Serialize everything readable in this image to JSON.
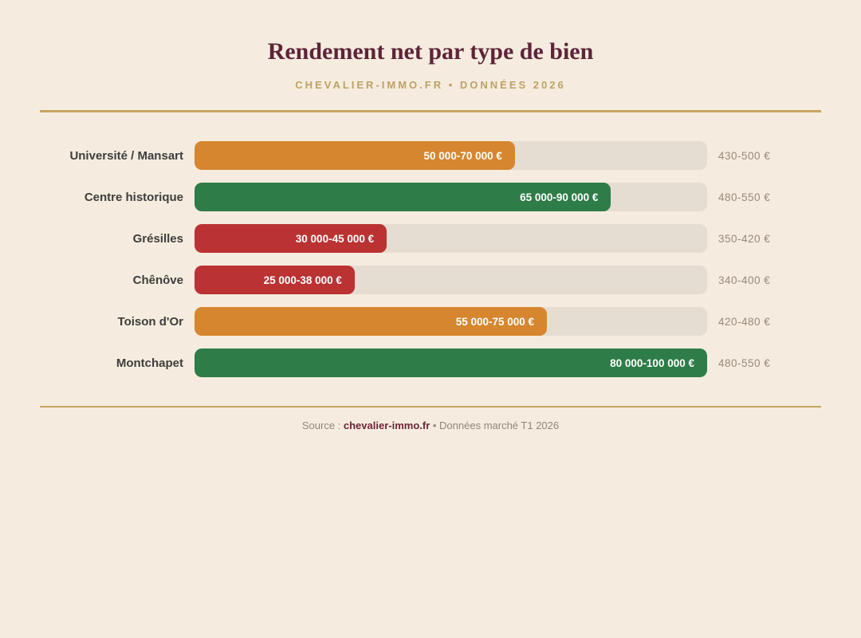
{
  "header": {
    "title": "Rendement net par type de bien",
    "subtitle": "CHEVALIER-IMMO.FR • DONNÉES 2026"
  },
  "chart_data": {
    "type": "bar",
    "orientation": "horizontal",
    "title": "Rendement net par type de bien",
    "value_unit": "EUR",
    "scale_note": "bar length proportional to lower bound of price range, 80 000 € = full track",
    "rows": [
      {
        "label": "Université / Mansart",
        "value_label": "50 000-70 000 €",
        "range_min": 50000,
        "range_max": 70000,
        "rent_label": "430-500 €",
        "color": "#d6862f",
        "fill_pct": 62.5
      },
      {
        "label": "Centre historique",
        "value_label": "65 000-90 000 €",
        "range_min": 65000,
        "range_max": 90000,
        "rent_label": "480-550 €",
        "color": "#2e7c47",
        "fill_pct": 81.25
      },
      {
        "label": "Grésilles",
        "value_label": "30 000-45 000 €",
        "range_min": 30000,
        "range_max": 45000,
        "rent_label": "350-420 €",
        "color": "#bb3232",
        "fill_pct": 37.5
      },
      {
        "label": "Chênôve",
        "value_label": "25 000-38 000 €",
        "range_min": 25000,
        "range_max": 38000,
        "rent_label": "340-400 €",
        "color": "#bb3232",
        "fill_pct": 31.25
      },
      {
        "label": "Toison d'Or",
        "value_label": "55 000-75 000 €",
        "range_min": 55000,
        "range_max": 75000,
        "rent_label": "420-480 €",
        "color": "#d6862f",
        "fill_pct": 68.75
      },
      {
        "label": "Montchapet",
        "value_label": "80 000-100 000 €",
        "range_min": 80000,
        "range_max": 100000,
        "rent_label": "480-550 €",
        "color": "#2e7c47",
        "fill_pct": 100
      }
    ]
  },
  "colors": {
    "background": "#f5ecdf",
    "track": "#e6ddd2",
    "accent_gold": "#c8a45f",
    "title_maroon": "#5e2438",
    "bar_orange": "#d6862f",
    "bar_green": "#2e7c47",
    "bar_red": "#bb3232"
  },
  "footer": {
    "prefix": "Source : ",
    "brand": "chevalier-immo.fr",
    "suffix": " • Données marché T1 2026"
  }
}
